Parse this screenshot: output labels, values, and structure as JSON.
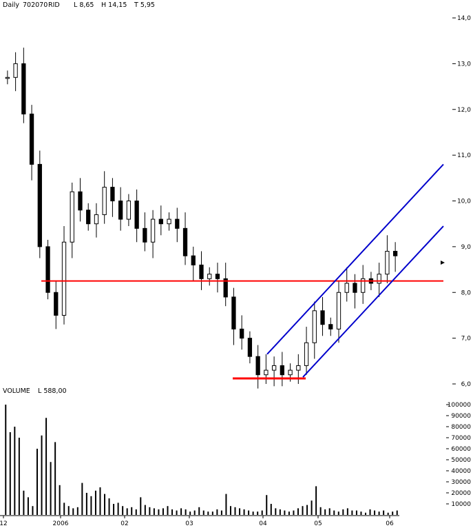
{
  "header": {
    "period": "Daily",
    "code": "702070",
    "symbol": "RID",
    "low": "L  8,65",
    "high": "H  14,15",
    "trough": "T  5,95"
  },
  "volume_header": {
    "label": "VOLUME",
    "last": "L  588,00"
  },
  "colors": {
    "candle": "#000000",
    "support_line": "#ff0000",
    "channel_line": "#0000cc",
    "background": "#ffffff"
  },
  "chart_data": [
    {
      "type": "candlestick",
      "y_axis_position": "right",
      "ylim": [
        6.0,
        14.0
      ],
      "yticks": [
        "14,0",
        "13,0",
        "12,0",
        "11,0",
        "10,0",
        "9,0",
        "8,0",
        "7,0",
        "6,0"
      ],
      "xticks": [
        "12",
        "2006",
        "02",
        "03",
        "04",
        "05",
        "06"
      ],
      "approx_close_series": [
        12.7,
        13.0,
        11.9,
        10.8,
        9.0,
        8.0,
        7.5,
        9.1,
        10.2,
        9.8,
        9.5,
        9.7,
        10.3,
        10.0,
        9.6,
        10.0,
        9.4,
        9.1,
        9.6,
        9.5,
        9.6,
        9.4,
        8.8,
        8.6,
        8.3,
        8.4,
        8.3,
        7.9,
        7.2,
        7.0,
        6.6,
        6.2,
        6.3,
        6.4,
        6.2,
        6.3,
        6.4,
        6.9,
        7.6,
        7.3,
        7.2,
        8.0,
        8.2,
        8.0,
        8.3,
        8.2,
        8.4,
        8.9,
        8.8
      ],
      "reference_lines": [
        {
          "name": "horizontal support",
          "value": 8.25
        },
        {
          "name": "bottom line",
          "value": 6.12
        }
      ],
      "trend_channel": {
        "lower": {
          "start": 6.15,
          "end": 9.45
        },
        "upper": {
          "start": 6.65,
          "end": 10.8
        }
      }
    },
    {
      "type": "bar",
      "name": "VOLUME",
      "y_axis_position": "right",
      "ylim": [
        0,
        105000
      ],
      "yticks": [
        "100000",
        "90000",
        "80000",
        "70000",
        "60000",
        "50000",
        "40000",
        "30000",
        "20000",
        "10000"
      ],
      "approx_values": [
        100000,
        75000,
        80000,
        70000,
        22000,
        16000,
        8000,
        60000,
        72000,
        88000,
        48000,
        66000,
        27000,
        11000,
        8000,
        6000,
        7000,
        29000,
        20000,
        17000,
        22000,
        25000,
        19000,
        15000,
        10000,
        11000,
        8000,
        6000,
        7000,
        5000,
        16000,
        9000,
        7000,
        6000,
        5000,
        6000,
        8000,
        5000,
        4000,
        6000,
        5000,
        3000,
        4000,
        7000,
        4000,
        3000,
        3000,
        5000,
        4000,
        19000,
        8000,
        7000,
        6000,
        5000,
        4000,
        3000,
        3000,
        4000,
        18000,
        10000,
        6000,
        5000,
        4000,
        3000,
        4000,
        6000,
        8000,
        9000,
        13000,
        26000,
        7000,
        5000,
        6000,
        4000,
        3000,
        5000,
        6000,
        4000,
        4000,
        3000,
        2000,
        5000,
        4000,
        3000,
        4000,
        2000,
        3000,
        4000
      ]
    }
  ]
}
